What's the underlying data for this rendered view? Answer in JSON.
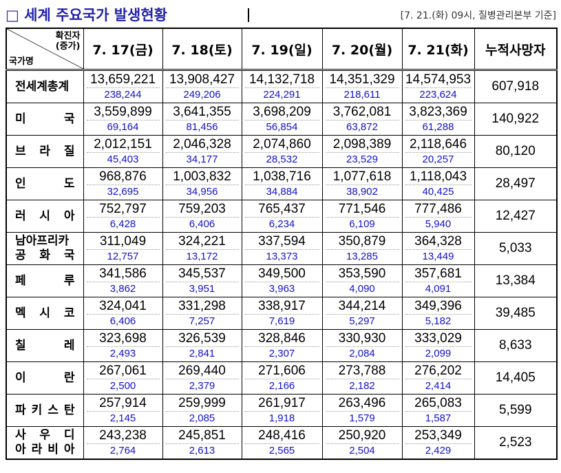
{
  "header": {
    "title": "□ 세계 주요국가 발생현황",
    "source": "[7. 21.(화) 09시, 질병관리본부 기준]"
  },
  "table": {
    "corner_top": "확진자\n(증가)",
    "corner_bottom": "국가명",
    "columns": [
      "7. 17(금)",
      "7. 18(토)",
      "7. 19(일)",
      "7. 20(월)",
      "7. 21(화)",
      "누적사망자"
    ],
    "rows": [
      {
        "name": [
          "전세계총계"
        ],
        "cases": [
          "13,659,221",
          "13,908,427",
          "14,132,718",
          "14,351,329",
          "14,574,953"
        ],
        "increase": [
          "238,244",
          "249,206",
          "224,291",
          "218,611",
          "223,624"
        ],
        "deaths": "607,918"
      },
      {
        "name": [
          "미 국"
        ],
        "cases": [
          "3,559,899",
          "3,641,355",
          "3,698,209",
          "3,762,081",
          "3,823,369"
        ],
        "increase": [
          "69,164",
          "81,456",
          "56,854",
          "63,872",
          "61,288"
        ],
        "deaths": "140,922"
      },
      {
        "name": [
          "브 라 질"
        ],
        "cases": [
          "2,012,151",
          "2,046,328",
          "2,074,860",
          "2,098,389",
          "2,118,646"
        ],
        "increase": [
          "45,403",
          "34,177",
          "28,532",
          "23,529",
          "20,257"
        ],
        "deaths": "80,120"
      },
      {
        "name": [
          "인 도"
        ],
        "cases": [
          "968,876",
          "1,003,832",
          "1,038,716",
          "1,077,618",
          "1,118,043"
        ],
        "increase": [
          "32,695",
          "34,956",
          "34,884",
          "38,902",
          "40,425"
        ],
        "deaths": "28,497"
      },
      {
        "name": [
          "러 시 아"
        ],
        "cases": [
          "752,797",
          "759,203",
          "765,437",
          "771,546",
          "777,486"
        ],
        "increase": [
          "6,428",
          "6,406",
          "6,234",
          "6,109",
          "5,940"
        ],
        "deaths": "12,427"
      },
      {
        "name": [
          "남아프리카",
          "공 화 국"
        ],
        "cases": [
          "311,049",
          "324,221",
          "337,594",
          "350,879",
          "364,328"
        ],
        "increase": [
          "12,757",
          "13,172",
          "13,373",
          "13,285",
          "13,449"
        ],
        "deaths": "5,033"
      },
      {
        "name": [
          "페 루"
        ],
        "cases": [
          "341,586",
          "345,537",
          "349,500",
          "353,590",
          "357,681"
        ],
        "increase": [
          "3,862",
          "3,951",
          "3,963",
          "4,090",
          "4,091"
        ],
        "deaths": "13,384"
      },
      {
        "name": [
          "멕 시 코"
        ],
        "cases": [
          "324,041",
          "331,298",
          "338,917",
          "344,214",
          "349,396"
        ],
        "increase": [
          "6,406",
          "7,257",
          "7,619",
          "5,297",
          "5,182"
        ],
        "deaths": "39,485"
      },
      {
        "name": [
          "칠 레"
        ],
        "cases": [
          "323,698",
          "326,539",
          "328,846",
          "330,930",
          "333,029"
        ],
        "increase": [
          "2,493",
          "2,841",
          "2,307",
          "2,084",
          "2,099"
        ],
        "deaths": "8,633"
      },
      {
        "name": [
          "이 란"
        ],
        "cases": [
          "267,061",
          "269,440",
          "271,606",
          "273,788",
          "276,202"
        ],
        "increase": [
          "2,500",
          "2,379",
          "2,166",
          "2,182",
          "2,414"
        ],
        "deaths": "14,405"
      },
      {
        "name": [
          "파 키 스 탄"
        ],
        "cases": [
          "257,914",
          "259,999",
          "261,917",
          "263,496",
          "265,083"
        ],
        "increase": [
          "2,145",
          "2,085",
          "1,918",
          "1,579",
          "1,587"
        ],
        "deaths": "5,599"
      },
      {
        "name": [
          "사 우 디",
          "아 라 비 아"
        ],
        "cases": [
          "243,238",
          "245,851",
          "248,416",
          "250,920",
          "253,349"
        ],
        "increase": [
          "2,764",
          "2,613",
          "2,565",
          "2,504",
          "2,429"
        ],
        "deaths": "2,523"
      }
    ]
  }
}
